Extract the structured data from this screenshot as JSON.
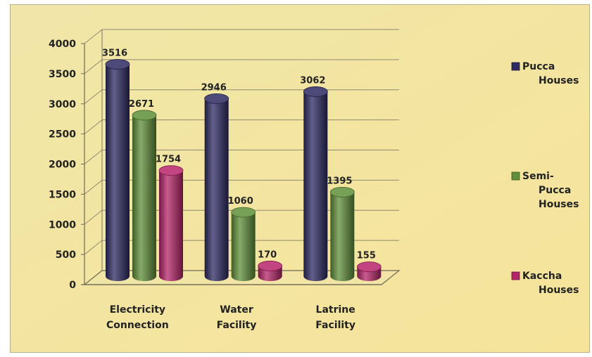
{
  "chart_data": {
    "type": "bar",
    "categories": [
      [
        "Electricity",
        "Connection"
      ],
      [
        "Water",
        "Facility"
      ],
      [
        "Latrine",
        "Facility"
      ]
    ],
    "series": [
      {
        "name": [
          "Pucca",
          "Houses"
        ],
        "values": [
          3516,
          2946,
          3062
        ],
        "color": "#2e2a63"
      },
      {
        "name": [
          "Semi-",
          "Pucca",
          "Houses"
        ],
        "values": [
          2671,
          1060,
          1395
        ],
        "color": "#5f8f39"
      },
      {
        "name": [
          "Kaccha",
          "Houses"
        ],
        "values": [
          1754,
          170,
          155
        ],
        "color": "#b5246a"
      }
    ],
    "ylim": [
      0,
      4000
    ],
    "yticks": [
      0,
      500,
      1000,
      1500,
      2000,
      2500,
      3000,
      3500,
      4000
    ],
    "grid": true,
    "legend": "right",
    "style": "3d-cylinder"
  }
}
